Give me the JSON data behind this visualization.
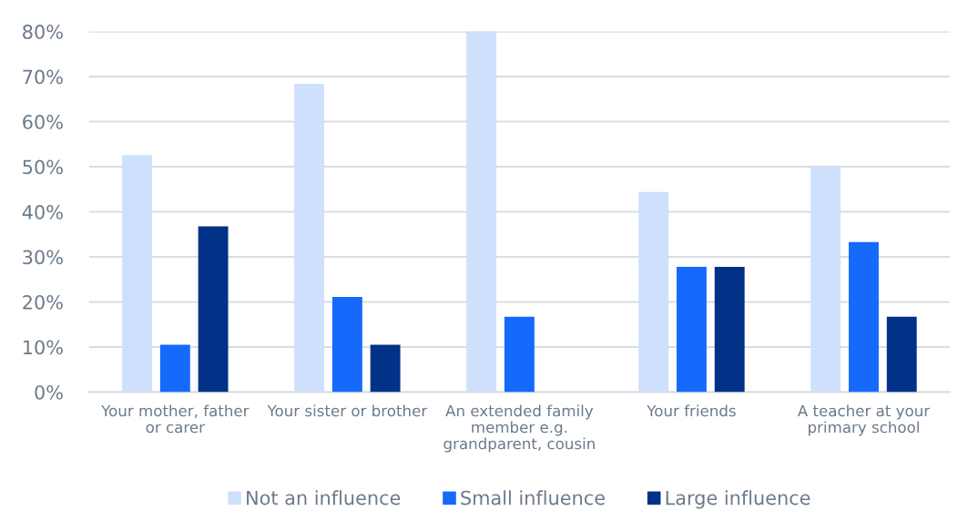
{
  "chart_data": {
    "type": "bar",
    "categories": [
      "Your mother, father\nor carer",
      "Your sister or brother",
      "An extended family\nmember e.g.\ngrandparent, cousin",
      "Your friends",
      "A teacher at your\nprimary school"
    ],
    "series": [
      {
        "name": "Not an influence",
        "color": "#cfe0fc",
        "values": [
          52.6,
          68.4,
          80,
          44.4,
          50
        ]
      },
      {
        "name": "Small influence",
        "color": "#1569fb",
        "values": [
          10.5,
          21.1,
          16.7,
          27.8,
          33.3
        ]
      },
      {
        "name": "Large influence",
        "color": "#023287",
        "values": [
          36.8,
          10.5,
          null,
          27.8,
          16.7
        ]
      }
    ],
    "ylim": [
      0,
      80
    ],
    "yticks": [
      {
        "value": 0,
        "label": "0%"
      },
      {
        "value": 10,
        "label": "10%"
      },
      {
        "value": 20,
        "label": "20%"
      },
      {
        "value": 30,
        "label": "30%"
      },
      {
        "value": 40,
        "label": "40%"
      },
      {
        "value": 50,
        "label": "50%"
      },
      {
        "value": 60,
        "label": "60%"
      },
      {
        "value": 70,
        "label": "70%"
      },
      {
        "value": 80,
        "label": "80%"
      }
    ],
    "grid": "y",
    "legend": "bottom"
  }
}
